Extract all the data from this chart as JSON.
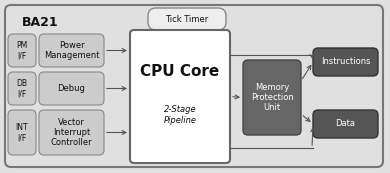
{
  "bg_color": "#e0e0e0",
  "outer_border": "#777777",
  "title": "BA21",
  "blocks": {
    "tick_timer": {
      "label": "Tick Timer",
      "fc": "#eeeeee",
      "ec": "#888888"
    },
    "cpu_core": {
      "label1": "CPU Core",
      "label2": "2-Stage\nPipeline",
      "fc": "#ffffff",
      "ec": "#666666"
    },
    "mpu": {
      "label": "Memory\nProtection\nUnit",
      "fc": "#666666",
      "ec": "#444444",
      "tc": "#ffffff"
    },
    "pm_if": {
      "label": "PM\nI/F",
      "fc": "#cccccc",
      "ec": "#888888"
    },
    "pm_blk": {
      "label": "Power\nManagement",
      "fc": "#cccccc",
      "ec": "#888888"
    },
    "db_if": {
      "label": "DB\nI/F",
      "fc": "#cccccc",
      "ec": "#888888"
    },
    "db_blk": {
      "label": "Debug",
      "fc": "#cccccc",
      "ec": "#888888"
    },
    "int_if": {
      "label": "INT\nI/F",
      "fc": "#cccccc",
      "ec": "#888888"
    },
    "int_blk": {
      "label": "Vector\nInterrupt\nController",
      "fc": "#cccccc",
      "ec": "#888888"
    },
    "instructions": {
      "label": "Instructions",
      "fc": "#555555",
      "ec": "#333333",
      "tc": "#ffffff"
    },
    "data_box": {
      "label": "Data",
      "fc": "#555555",
      "ec": "#333333",
      "tc": "#ffffff"
    }
  },
  "arrow_color": "#555555"
}
